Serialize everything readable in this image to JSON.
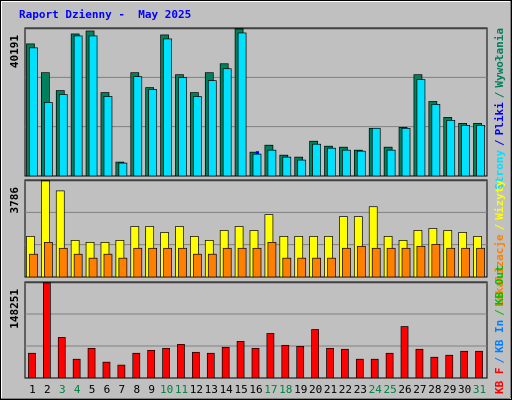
{
  "title": "Raport Dzienny -  May 2025",
  "label_separator": "/",
  "chart_data": [
    {
      "type": "bar",
      "series": [
        {
          "name": "Wywołania",
          "color": "#00805c",
          "values": [
            36120,
            28250,
            23360,
            38840,
            39650,
            22810,
            3800,
            28250,
            24170,
            38570,
            27700,
            22810,
            28250,
            30690,
            40191,
            6520,
            8420,
            5700,
            5160,
            9510,
            8150,
            7880,
            7060,
            13040,
            7880,
            13310,
            27700,
            20370,
            16020,
            14390,
            14390
          ]
        },
        {
          "name": "Pliki",
          "color": "#0000ff",
          "values": [
            4070,
            5430,
            4070,
            4070,
            4070,
            4070,
            3260,
            4890,
            4070,
            4620,
            5430,
            4070,
            4070,
            4070,
            4620,
            6790,
            2720,
            2720,
            2170,
            8690,
            2170,
            2720,
            2170,
            7600,
            2720,
            7600,
            4890,
            4070,
            3260,
            2720,
            2720
          ]
        },
        {
          "name": "Strony",
          "color": "#00e0ff",
          "values": [
            35040,
            20100,
            22270,
            38300,
            38300,
            21730,
            3530,
            27160,
            23630,
            37480,
            26890,
            21730,
            26070,
            29330,
            39110,
            5980,
            7060,
            5160,
            4350,
            8690,
            7600,
            7060,
            6790,
            13040,
            7060,
            13040,
            26350,
            19560,
            15210,
            13850,
            13850
          ]
        }
      ],
      "ylim": [
        0,
        40191
      ],
      "yticks": [
        40191
      ]
    },
    {
      "type": "bar",
      "series": [
        {
          "name": "Wizyty",
          "color": "#ffff00",
          "values": [
            1600,
            3786,
            3396,
            1444,
            1366,
            1366,
            1444,
            1991,
            1991,
            1756,
            1991,
            1600,
            1444,
            1834,
            1991,
            1834,
            2459,
            1600,
            1600,
            1600,
            1600,
            2381,
            2381,
            2771,
            1600,
            1444,
            1834,
            1912,
            1834,
            1756,
            1600
          ]
        },
        {
          "name": "Lokalizacje",
          "color": "#ff8000",
          "values": [
            898,
            1366,
            1132,
            898,
            742,
            898,
            742,
            1132,
            1132,
            1132,
            1132,
            898,
            898,
            1132,
            1132,
            1132,
            1366,
            742,
            742,
            742,
            742,
            1132,
            1210,
            1132,
            1132,
            1132,
            1210,
            1288,
            1132,
            1132,
            1132
          ]
        }
      ],
      "ylim": [
        0,
        3786
      ],
      "yticks": [
        3786
      ]
    },
    {
      "type": "bar",
      "categories": [
        "1",
        "2",
        "3",
        "4",
        "5",
        "6",
        "7",
        "8",
        "9",
        "10",
        "11",
        "12",
        "13",
        "14",
        "15",
        "16",
        "17",
        "18",
        "19",
        "20",
        "21",
        "22",
        "23",
        "24",
        "25",
        "26",
        "27",
        "28",
        "29",
        "30",
        "31"
      ],
      "xtick_colors": [
        "#000000",
        "#000000",
        "#008040",
        "#008040",
        "#000000",
        "#000000",
        "#000000",
        "#000000",
        "#000000",
        "#008040",
        "#008040",
        "#000000",
        "#000000",
        "#000000",
        "#000000",
        "#000000",
        "#008040",
        "#008040",
        "#000000",
        "#000000",
        "#000000",
        "#000000",
        "#000000",
        "#008040",
        "#008040",
        "#000000",
        "#000000",
        "#000000",
        "#000000",
        "#000000",
        "#008040"
      ],
      "series": [
        {
          "name": "KB F",
          "color": "#ff0000",
          "values": [
            38600,
            148251,
            63300,
            29300,
            46300,
            24700,
            20100,
            38600,
            43200,
            46300,
            52500,
            40100,
            38600,
            47900,
            57100,
            46300,
            69500,
            51000,
            49400,
            75700,
            46300,
            44800,
            29300,
            29300,
            38600,
            80300,
            44800,
            32400,
            35500,
            41700,
            41700
          ]
        },
        {
          "name": "KB In",
          "color": "#0080ff"
        },
        {
          "name": "KB Out",
          "color": "#00c000"
        }
      ],
      "ylim": [
        0,
        148251
      ],
      "yticks": [
        148251
      ]
    }
  ]
}
